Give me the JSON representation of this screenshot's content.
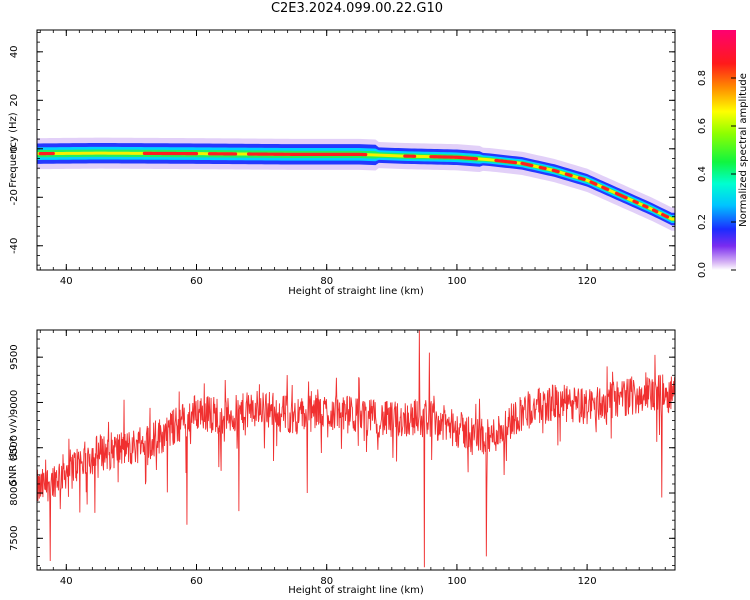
{
  "title": "C2E3.2024.099.00.22.G10",
  "chart_data": [
    {
      "type": "heatmap",
      "xlabel": "Height of straight line (km)",
      "ylabel": "Frequency (Hz)",
      "xlim": [
        35.5,
        133.5
      ],
      "ylim": [
        -50,
        49
      ],
      "xticks": [
        40,
        60,
        80,
        100,
        120
      ],
      "yticks": [
        -40,
        -20,
        0,
        20,
        40
      ],
      "ridge": [
        {
          "x": 36,
          "y": -2.0
        },
        {
          "x": 45,
          "y": -1.8
        },
        {
          "x": 60,
          "y": -2.0
        },
        {
          "x": 75,
          "y": -2.3
        },
        {
          "x": 85,
          "y": -2.3
        },
        {
          "x": 92,
          "y": -3.0
        },
        {
          "x": 100,
          "y": -3.5
        },
        {
          "x": 105,
          "y": -4.5
        },
        {
          "x": 110,
          "y": -6.0
        },
        {
          "x": 115,
          "y": -9.0
        },
        {
          "x": 120,
          "y": -13.0
        },
        {
          "x": 125,
          "y": -19.0
        },
        {
          "x": 130,
          "y": -25.0
        },
        {
          "x": 133,
          "y": -29.0
        }
      ],
      "colorbar": {
        "label": "Normalized spectral amplitude",
        "range": [
          0,
          1
        ],
        "ticks": [
          "0.0",
          "0.2",
          "0.4",
          "0.6",
          "0.8"
        ]
      }
    },
    {
      "type": "line",
      "xlabel": "Height of straight line (km)",
      "ylabel": "SNR (10 * v/v)",
      "xlim": [
        35.5,
        133.5
      ],
      "ylim": [
        7150,
        9800
      ],
      "xticks": [
        40,
        60,
        80,
        100,
        120
      ],
      "yticks": [
        7500,
        8000,
        8500,
        9000,
        9500
      ],
      "series": [
        {
          "color": "#f03030",
          "trend": [
            {
              "x": 36,
              "y": 8050
            },
            {
              "x": 40,
              "y": 8250
            },
            {
              "x": 45,
              "y": 8450
            },
            {
              "x": 50,
              "y": 8500
            },
            {
              "x": 55,
              "y": 8650
            },
            {
              "x": 60,
              "y": 8900
            },
            {
              "x": 65,
              "y": 8850
            },
            {
              "x": 70,
              "y": 8950
            },
            {
              "x": 75,
              "y": 8850
            },
            {
              "x": 80,
              "y": 8900
            },
            {
              "x": 85,
              "y": 8850
            },
            {
              "x": 90,
              "y": 8800
            },
            {
              "x": 95,
              "y": 8850
            },
            {
              "x": 100,
              "y": 8700
            },
            {
              "x": 105,
              "y": 8600
            },
            {
              "x": 110,
              "y": 8900
            },
            {
              "x": 115,
              "y": 9000
            },
            {
              "x": 120,
              "y": 8950
            },
            {
              "x": 125,
              "y": 9050
            },
            {
              "x": 130,
              "y": 9100
            },
            {
              "x": 133,
              "y": 9100
            }
          ],
          "spikes": [
            {
              "x": 37.5,
              "y": 7250
            },
            {
              "x": 58.5,
              "y": 7650
            },
            {
              "x": 66.5,
              "y": 7800
            },
            {
              "x": 77,
              "y": 8000
            },
            {
              "x": 94.2,
              "y": 9800
            },
            {
              "x": 95.0,
              "y": 7180
            },
            {
              "x": 95.8,
              "y": 9550
            },
            {
              "x": 104.5,
              "y": 7300
            },
            {
              "x": 131.5,
              "y": 7950
            }
          ]
        }
      ]
    }
  ]
}
